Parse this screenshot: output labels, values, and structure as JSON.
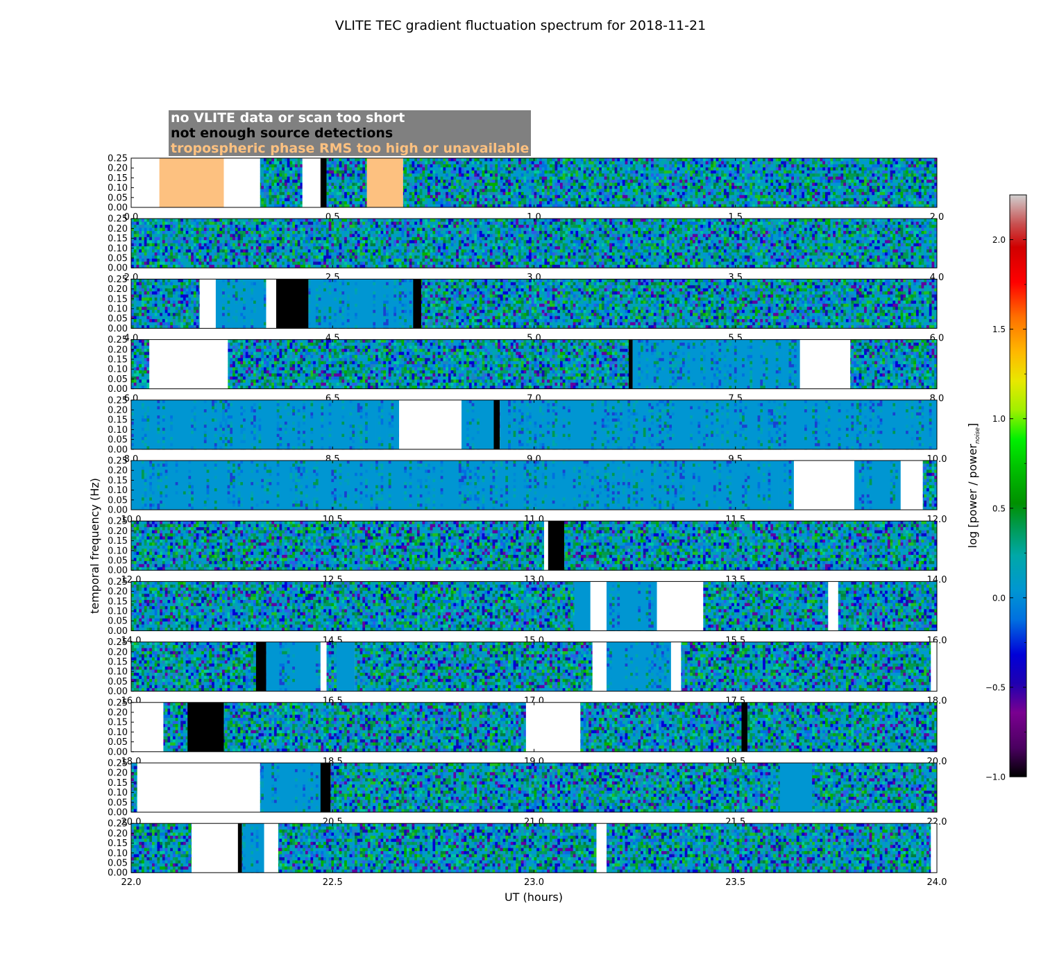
{
  "chart_data": {
    "type": "heatmap",
    "title": "VLITE TEC gradient fluctuation spectrum for 2018-11-21",
    "xlabel": "UT (hours)",
    "ylabel": "temporal frequency (Hz)",
    "colorbar_label": "log [power / power",
    "colorbar_label_subscript": "noise",
    "colorbar_label_close": "]",
    "colorbar_range": [
      -1.0,
      2.25
    ],
    "colorbar_ticks": [
      "−1.0",
      "−0.5",
      "0.0",
      "0.5",
      "1.0",
      "1.5",
      "2.0"
    ],
    "colorbar_tick_values": [
      -1.0,
      -0.5,
      0.0,
      0.5,
      1.0,
      1.5,
      2.0
    ],
    "ylim": [
      0,
      0.25
    ],
    "y_ticks": [
      "0.00",
      "0.05",
      "0.10",
      "0.15",
      "0.20",
      "0.25"
    ],
    "colors": {
      "no_data": "#ffffff",
      "not_enough_detections": "#000000",
      "troposphere": "#fdc180",
      "legend_bg": "#808080",
      "flat": "#0096d2"
    },
    "legend": [
      {
        "label": "no VLITE data or scan too short",
        "text_color": "#ffffff"
      },
      {
        "label": "not enough source detections",
        "text_color": "#000000"
      },
      {
        "label": "tropospheric phase RMS too high or unavailable",
        "text_color": "#fdc180"
      }
    ],
    "panels": [
      {
        "x_range": [
          0,
          2
        ],
        "x_ticks": [
          "0.0",
          "0.5",
          "1.0",
          "1.5",
          "2.0"
        ],
        "segments": [
          {
            "start": 0.0,
            "end": 0.07,
            "kind": "white"
          },
          {
            "start": 0.07,
            "end": 0.23,
            "kind": "orange"
          },
          {
            "start": 0.23,
            "end": 0.32,
            "kind": "white"
          },
          {
            "start": 0.32,
            "end": 0.425,
            "kind": "noise"
          },
          {
            "start": 0.425,
            "end": 0.47,
            "kind": "white"
          },
          {
            "start": 0.47,
            "end": 0.485,
            "kind": "black"
          },
          {
            "start": 0.485,
            "end": 0.585,
            "kind": "noise"
          },
          {
            "start": 0.585,
            "end": 0.675,
            "kind": "orange"
          },
          {
            "start": 0.675,
            "end": 2.0,
            "kind": "noise"
          }
        ]
      },
      {
        "x_range": [
          2,
          4
        ],
        "x_ticks": [
          "2.0",
          "2.5",
          "3.0",
          "3.5",
          "4.0"
        ],
        "segments": [
          {
            "start": 2.0,
            "end": 4.0,
            "kind": "noise"
          }
        ]
      },
      {
        "x_range": [
          4,
          6
        ],
        "x_ticks": [
          "4.0",
          "4.5",
          "5.0",
          "5.5",
          "6.0"
        ],
        "segments": [
          {
            "start": 4.0,
            "end": 4.17,
            "kind": "noise"
          },
          {
            "start": 4.17,
            "end": 4.21,
            "kind": "white"
          },
          {
            "start": 4.21,
            "end": 4.335,
            "kind": "flatnoise"
          },
          {
            "start": 4.335,
            "end": 4.36,
            "kind": "white"
          },
          {
            "start": 4.36,
            "end": 4.44,
            "kind": "black"
          },
          {
            "start": 4.44,
            "end": 4.7,
            "kind": "flatnoise"
          },
          {
            "start": 4.7,
            "end": 4.72,
            "kind": "black"
          },
          {
            "start": 4.72,
            "end": 6.0,
            "kind": "noise"
          }
        ]
      },
      {
        "x_range": [
          6,
          8
        ],
        "x_ticks": [
          "6.0",
          "6.5",
          "7.0",
          "7.5",
          "8.0"
        ],
        "segments": [
          {
            "start": 6.0,
            "end": 6.045,
            "kind": "noise"
          },
          {
            "start": 6.045,
            "end": 6.24,
            "kind": "white"
          },
          {
            "start": 6.24,
            "end": 7.235,
            "kind": "noise"
          },
          {
            "start": 7.235,
            "end": 7.245,
            "kind": "black"
          },
          {
            "start": 7.245,
            "end": 7.66,
            "kind": "flatnoise"
          },
          {
            "start": 7.66,
            "end": 7.785,
            "kind": "white"
          },
          {
            "start": 7.785,
            "end": 8.0,
            "kind": "noise"
          }
        ]
      },
      {
        "x_range": [
          8,
          10
        ],
        "x_ticks": [
          "8.0",
          "8.5",
          "9.0",
          "9.5",
          "10.0"
        ],
        "segments": [
          {
            "start": 8.0,
            "end": 8.665,
            "kind": "flatnoise"
          },
          {
            "start": 8.665,
            "end": 8.82,
            "kind": "white"
          },
          {
            "start": 8.82,
            "end": 8.9,
            "kind": "flatnoise"
          },
          {
            "start": 8.9,
            "end": 8.915,
            "kind": "black"
          },
          {
            "start": 8.915,
            "end": 10.0,
            "kind": "flatnoise"
          }
        ]
      },
      {
        "x_range": [
          10,
          12
        ],
        "x_ticks": [
          "10.0",
          "10.5",
          "11.0",
          "11.5",
          "12.0"
        ],
        "segments": [
          {
            "start": 10.0,
            "end": 11.645,
            "kind": "flatnoise"
          },
          {
            "start": 11.645,
            "end": 11.795,
            "kind": "white"
          },
          {
            "start": 11.795,
            "end": 11.91,
            "kind": "flatnoise"
          },
          {
            "start": 11.91,
            "end": 11.965,
            "kind": "white"
          },
          {
            "start": 11.965,
            "end": 12.0,
            "kind": "noise"
          }
        ]
      },
      {
        "x_range": [
          12,
          14
        ],
        "x_ticks": [
          "12.0",
          "12.5",
          "13.0",
          "13.5",
          "14.0"
        ],
        "segments": [
          {
            "start": 12.0,
            "end": 13.025,
            "kind": "noise"
          },
          {
            "start": 13.025,
            "end": 13.035,
            "kind": "white"
          },
          {
            "start": 13.035,
            "end": 13.075,
            "kind": "black"
          },
          {
            "start": 13.075,
            "end": 14.0,
            "kind": "noise"
          }
        ]
      },
      {
        "x_range": [
          14,
          16
        ],
        "x_ticks": [
          "14.0",
          "14.5",
          "15.0",
          "15.5",
          "16.0"
        ],
        "segments": [
          {
            "start": 14.0,
            "end": 15.1,
            "kind": "noise"
          },
          {
            "start": 15.1,
            "end": 15.14,
            "kind": "flat"
          },
          {
            "start": 15.14,
            "end": 15.18,
            "kind": "white"
          },
          {
            "start": 15.18,
            "end": 15.305,
            "kind": "flatnoise"
          },
          {
            "start": 15.305,
            "end": 15.42,
            "kind": "white"
          },
          {
            "start": 15.42,
            "end": 15.73,
            "kind": "noise"
          },
          {
            "start": 15.73,
            "end": 15.755,
            "kind": "white"
          },
          {
            "start": 15.755,
            "end": 16.0,
            "kind": "noise"
          }
        ]
      },
      {
        "x_range": [
          16,
          18
        ],
        "x_ticks": [
          "16.0",
          "16.5",
          "17.0",
          "17.5",
          "18.0"
        ],
        "segments": [
          {
            "start": 16.0,
            "end": 16.31,
            "kind": "noise"
          },
          {
            "start": 16.31,
            "end": 16.335,
            "kind": "black"
          },
          {
            "start": 16.335,
            "end": 16.47,
            "kind": "flatnoise"
          },
          {
            "start": 16.47,
            "end": 16.485,
            "kind": "white"
          },
          {
            "start": 16.485,
            "end": 16.51,
            "kind": "noise"
          },
          {
            "start": 16.51,
            "end": 16.555,
            "kind": "flat"
          },
          {
            "start": 16.555,
            "end": 17.145,
            "kind": "noise"
          },
          {
            "start": 17.145,
            "end": 17.18,
            "kind": "white"
          },
          {
            "start": 17.18,
            "end": 17.34,
            "kind": "flatnoise"
          },
          {
            "start": 17.34,
            "end": 17.365,
            "kind": "white"
          },
          {
            "start": 17.365,
            "end": 17.985,
            "kind": "noise"
          },
          {
            "start": 17.985,
            "end": 18.0,
            "kind": "white"
          }
        ]
      },
      {
        "x_range": [
          18,
          20
        ],
        "x_ticks": [
          "18.0",
          "18.5",
          "19.0",
          "19.5",
          "20.0"
        ],
        "segments": [
          {
            "start": 18.0,
            "end": 18.08,
            "kind": "white"
          },
          {
            "start": 18.08,
            "end": 18.14,
            "kind": "noise"
          },
          {
            "start": 18.14,
            "end": 18.23,
            "kind": "black"
          },
          {
            "start": 18.23,
            "end": 18.98,
            "kind": "noise"
          },
          {
            "start": 18.98,
            "end": 19.115,
            "kind": "white"
          },
          {
            "start": 19.115,
            "end": 19.515,
            "kind": "noise"
          },
          {
            "start": 19.515,
            "end": 19.53,
            "kind": "black"
          },
          {
            "start": 19.53,
            "end": 20.0,
            "kind": "noise"
          }
        ]
      },
      {
        "x_range": [
          20,
          22
        ],
        "x_ticks": [
          "20.0",
          "20.5",
          "21.0",
          "21.5",
          "22.0"
        ],
        "segments": [
          {
            "start": 20.0,
            "end": 20.015,
            "kind": "noise"
          },
          {
            "start": 20.015,
            "end": 20.32,
            "kind": "white"
          },
          {
            "start": 20.32,
            "end": 20.47,
            "kind": "flatnoise"
          },
          {
            "start": 20.47,
            "end": 20.495,
            "kind": "black"
          },
          {
            "start": 20.495,
            "end": 21.61,
            "kind": "noise"
          },
          {
            "start": 21.61,
            "end": 21.69,
            "kind": "flat"
          },
          {
            "start": 21.69,
            "end": 22.0,
            "kind": "noise"
          }
        ]
      },
      {
        "x_range": [
          22,
          24
        ],
        "x_ticks": [
          "22.0",
          "22.5",
          "23.0",
          "23.5",
          "24.0"
        ],
        "segments": [
          {
            "start": 22.0,
            "end": 22.15,
            "kind": "noise"
          },
          {
            "start": 22.15,
            "end": 22.265,
            "kind": "white"
          },
          {
            "start": 22.265,
            "end": 22.275,
            "kind": "black"
          },
          {
            "start": 22.275,
            "end": 22.33,
            "kind": "flatnoise"
          },
          {
            "start": 22.33,
            "end": 22.365,
            "kind": "white"
          },
          {
            "start": 22.365,
            "end": 23.155,
            "kind": "noise"
          },
          {
            "start": 23.155,
            "end": 23.18,
            "kind": "white"
          },
          {
            "start": 23.18,
            "end": 23.985,
            "kind": "noise"
          },
          {
            "start": 23.985,
            "end": 24.0,
            "kind": "white"
          }
        ]
      }
    ]
  }
}
